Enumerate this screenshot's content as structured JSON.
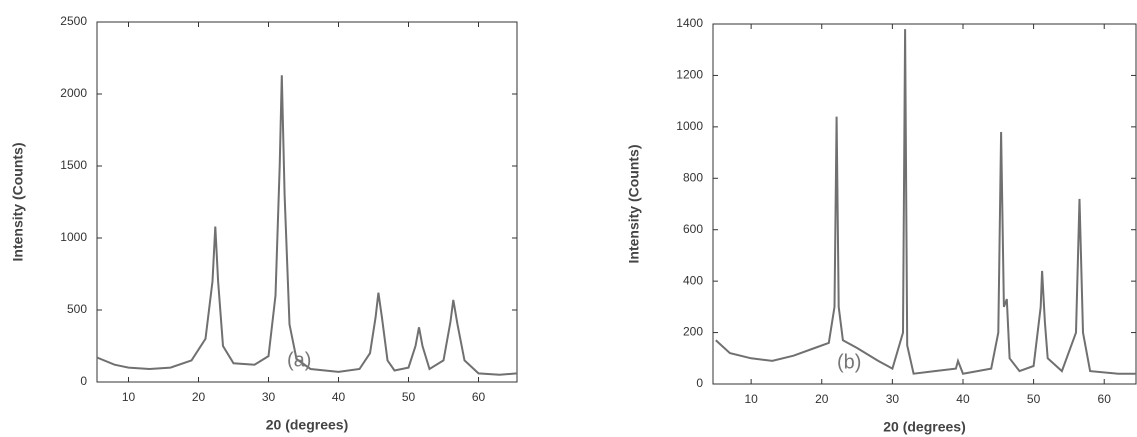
{
  "chart_data": [
    {
      "type": "line",
      "annotation": "(a)",
      "x_label": "20 (degrees)",
      "y_label": "Intensity (Counts)",
      "color": "#707070",
      "xlim": [
        5.5,
        65.5
      ],
      "ylim": [
        0,
        2500
      ],
      "xticks": [
        10,
        20,
        30,
        40,
        50,
        60
      ],
      "yticks": [
        0,
        500,
        1000,
        1500,
        2000,
        2500
      ],
      "x": [
        5.5,
        8,
        10,
        13,
        16,
        19,
        21,
        22,
        22.4,
        22.8,
        23.5,
        25,
        28,
        30,
        31,
        31.6,
        31.9,
        32.3,
        33,
        34,
        36,
        40,
        43,
        44.5,
        45.3,
        45.7,
        46.2,
        47,
        48,
        50,
        51,
        51.5,
        52,
        53,
        55,
        56,
        56.4,
        57,
        58,
        60,
        63,
        65.5
      ],
      "values": [
        170,
        120,
        100,
        90,
        100,
        150,
        300,
        700,
        1080,
        700,
        250,
        130,
        120,
        180,
        600,
        1500,
        2130,
        1300,
        400,
        160,
        90,
        70,
        90,
        200,
        450,
        620,
        450,
        150,
        80,
        100,
        250,
        380,
        250,
        90,
        150,
        420,
        570,
        400,
        150,
        60,
        50,
        60
      ]
    },
    {
      "type": "line",
      "annotation": "(b)",
      "x_label": "20 (degrees)",
      "y_label": "Intensity (Counts)",
      "color": "#707070",
      "xlim": [
        4.6,
        64.5
      ],
      "ylim": [
        0,
        1400
      ],
      "xticks": [
        10,
        20,
        30,
        40,
        50,
        60
      ],
      "yticks": [
        0,
        200,
        400,
        600,
        800,
        1000,
        1200,
        1400
      ],
      "x": [
        5,
        7,
        10,
        13,
        16,
        19,
        21,
        21.8,
        22.1,
        22.4,
        23,
        25,
        28,
        30,
        31.5,
        31.8,
        32.1,
        33,
        36,
        39,
        39.3,
        40,
        44,
        45,
        45.4,
        45.8,
        46.2,
        46.6,
        48,
        50,
        51,
        51.2,
        51.6,
        52,
        54,
        56,
        56.5,
        57,
        58,
        62,
        64.5
      ],
      "values": [
        170,
        120,
        100,
        90,
        110,
        140,
        160,
        300,
        1040,
        300,
        170,
        140,
        90,
        60,
        200,
        1380,
        150,
        40,
        50,
        60,
        90,
        40,
        60,
        200,
        980,
        300,
        330,
        100,
        50,
        70,
        300,
        440,
        240,
        100,
        50,
        200,
        720,
        200,
        50,
        40,
        40
      ]
    }
  ]
}
